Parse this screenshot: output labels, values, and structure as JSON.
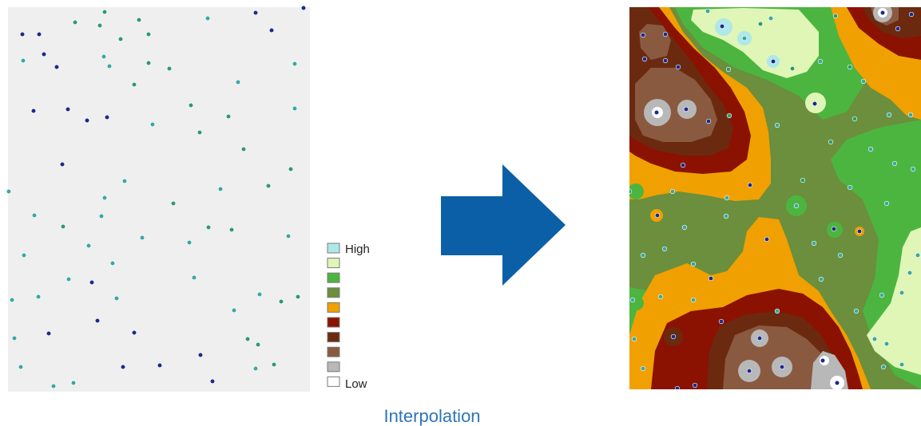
{
  "legend": {
    "high_label": "High",
    "low_label": "Low",
    "classes": [
      {
        "rank": 1,
        "color": "#aee8e8"
      },
      {
        "rank": 2,
        "color": "#dff6b6"
      },
      {
        "rank": 3,
        "color": "#4cb540"
      },
      {
        "rank": 4,
        "color": "#6b8f3c"
      },
      {
        "rank": 5,
        "color": "#f0a000"
      },
      {
        "rank": 6,
        "color": "#8b1200"
      },
      {
        "rank": 7,
        "color": "#6b2a10"
      },
      {
        "rank": 8,
        "color": "#8a5a40"
      },
      {
        "rank": 9,
        "color": "#b8b8b8"
      },
      {
        "rank": 10,
        "color": "#ffffff"
      }
    ]
  },
  "caption": "Interpolation",
  "colors": {
    "panel_background": "#efefef",
    "arrow": "#0b5fa6",
    "caption": "#2e75b6",
    "point_blue": "#1a2a8c",
    "point_green": "#2f9a6a",
    "point_teal": "#39a8a0"
  },
  "icons": {
    "arrow": "right-arrow-icon"
  }
}
